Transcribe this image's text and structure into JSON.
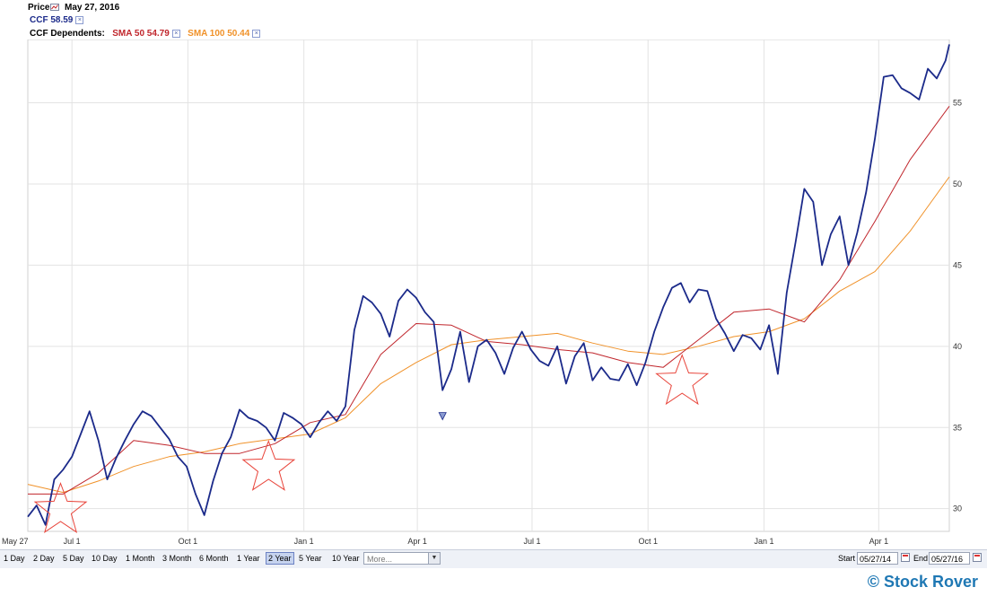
{
  "header": {
    "price_label": "Price",
    "date": "May 27, 2016",
    "ticker_label": "CCF 58.59",
    "dependents_label": "CCF Dependents:",
    "sma50_label": "SMA 50 54.79",
    "sma100_label": "SMA 100 50.44",
    "close_glyph": "×"
  },
  "colors": {
    "price": "#1b2a8a",
    "sma50": "#c0262c",
    "sma100": "#f0922a",
    "star": "#e8443a",
    "grid": "#e3e3e3"
  },
  "chart_data": {
    "type": "line",
    "x_axis": {
      "start": "2014-05-27",
      "end": "2016-05-27",
      "tick_labels": [
        "May 27",
        "Jul 1",
        "Oct 1",
        "Jan 1",
        "Apr 1",
        "Jul 1",
        "Oct 1",
        "Jan 1",
        "Apr 1"
      ],
      "tick_dates": [
        "2014-05-27",
        "2014-07-01",
        "2014-10-01",
        "2015-01-01",
        "2015-04-01",
        "2015-07-01",
        "2015-10-01",
        "2016-01-01",
        "2016-04-01"
      ]
    },
    "y_axis": {
      "ticks": [
        30,
        35,
        40,
        45,
        50,
        55
      ],
      "ylim": [
        28.6,
        58.9
      ],
      "position": "right"
    },
    "grid": true,
    "series": [
      {
        "name": "CCF",
        "x": [
          "2014-05-27",
          "2014-06-03",
          "2014-06-10",
          "2014-06-17",
          "2014-06-24",
          "2014-07-01",
          "2014-07-08",
          "2014-07-15",
          "2014-07-22",
          "2014-07-29",
          "2014-08-05",
          "2014-08-12",
          "2014-08-19",
          "2014-08-26",
          "2014-09-02",
          "2014-09-09",
          "2014-09-16",
          "2014-09-23",
          "2014-09-30",
          "2014-10-07",
          "2014-10-14",
          "2014-10-21",
          "2014-10-28",
          "2014-11-04",
          "2014-11-11",
          "2014-11-18",
          "2014-11-25",
          "2014-12-02",
          "2014-12-09",
          "2014-12-16",
          "2014-12-23",
          "2014-12-30",
          "2015-01-06",
          "2015-01-13",
          "2015-01-20",
          "2015-01-27",
          "2015-02-03",
          "2015-02-10",
          "2015-02-17",
          "2015-02-24",
          "2015-03-03",
          "2015-03-10",
          "2015-03-17",
          "2015-03-24",
          "2015-03-31",
          "2015-04-07",
          "2015-04-14",
          "2015-04-21",
          "2015-04-28",
          "2015-05-05",
          "2015-05-12",
          "2015-05-19",
          "2015-05-26",
          "2015-06-02",
          "2015-06-09",
          "2015-06-16",
          "2015-06-23",
          "2015-06-30",
          "2015-07-07",
          "2015-07-14",
          "2015-07-21",
          "2015-07-28",
          "2015-08-04",
          "2015-08-11",
          "2015-08-18",
          "2015-08-25",
          "2015-09-01",
          "2015-09-08",
          "2015-09-15",
          "2015-09-22",
          "2015-09-29",
          "2015-10-06",
          "2015-10-13",
          "2015-10-20",
          "2015-10-27",
          "2015-11-03",
          "2015-11-10",
          "2015-11-17",
          "2015-11-24",
          "2015-12-01",
          "2015-12-08",
          "2015-12-15",
          "2015-12-22",
          "2015-12-29",
          "2016-01-05",
          "2016-01-12",
          "2016-01-19",
          "2016-01-26",
          "2016-02-02",
          "2016-02-09",
          "2016-02-16",
          "2016-02-23",
          "2016-03-01",
          "2016-03-08",
          "2016-03-15",
          "2016-03-22",
          "2016-03-29",
          "2016-04-05",
          "2016-04-12",
          "2016-04-19",
          "2016-04-26",
          "2016-05-03",
          "2016-05-10",
          "2016-05-17",
          "2016-05-24",
          "2016-05-27"
        ],
        "values": [
          29.5,
          30.2,
          29.0,
          31.8,
          32.4,
          33.2,
          34.6,
          36.0,
          34.2,
          31.8,
          33.1,
          34.2,
          35.2,
          36.0,
          35.7,
          35.0,
          34.3,
          33.2,
          32.6,
          30.9,
          29.6,
          31.7,
          33.4,
          34.4,
          36.1,
          35.6,
          35.4,
          35.0,
          34.2,
          35.9,
          35.6,
          35.2,
          34.4,
          35.3,
          36.0,
          35.4,
          36.3,
          41.0,
          43.1,
          42.7,
          42.0,
          40.6,
          42.8,
          43.5,
          43.0,
          42.1,
          41.5,
          37.3,
          38.6,
          40.9,
          37.8,
          40.0,
          40.4,
          39.6,
          38.3,
          39.9,
          40.9,
          39.8,
          39.1,
          38.8,
          40.0,
          37.7,
          39.4,
          40.2,
          37.9,
          38.7,
          38.0,
          37.9,
          38.9,
          37.6,
          39.0,
          40.9,
          42.4,
          43.6,
          43.9,
          42.7,
          43.5,
          43.4,
          41.7,
          40.8,
          39.7,
          40.7,
          40.5,
          39.8,
          41.3,
          38.3,
          43.3,
          46.4,
          49.7,
          48.9,
          45.0,
          46.9,
          48.0,
          45.0,
          47.0,
          49.5,
          52.8,
          56.6,
          56.7,
          55.9,
          55.6,
          55.2,
          57.1,
          56.5,
          57.6,
          58.6
        ]
      },
      {
        "name": "SMA 50",
        "x": [
          "2014-05-27",
          "2014-06-24",
          "2014-07-22",
          "2014-08-19",
          "2014-09-16",
          "2014-10-14",
          "2014-11-11",
          "2014-12-09",
          "2015-01-06",
          "2015-02-03",
          "2015-03-03",
          "2015-03-31",
          "2015-04-28",
          "2015-05-26",
          "2015-06-23",
          "2015-07-21",
          "2015-08-18",
          "2015-09-15",
          "2015-10-13",
          "2015-11-10",
          "2015-12-08",
          "2016-01-05",
          "2016-02-02",
          "2016-03-01",
          "2016-03-29",
          "2016-04-26",
          "2016-05-27"
        ],
        "values": [
          30.9,
          30.9,
          32.2,
          34.2,
          33.9,
          33.4,
          33.4,
          34.0,
          35.3,
          35.8,
          39.5,
          41.4,
          41.3,
          40.3,
          40.1,
          39.8,
          39.6,
          39.0,
          38.7,
          40.4,
          42.1,
          42.3,
          41.5,
          44.1,
          47.7,
          51.5,
          54.79
        ]
      },
      {
        "name": "SMA 100",
        "x": [
          "2014-05-27",
          "2014-06-24",
          "2014-07-22",
          "2014-08-19",
          "2014-09-16",
          "2014-10-14",
          "2014-11-11",
          "2014-12-09",
          "2015-01-06",
          "2015-02-03",
          "2015-03-03",
          "2015-03-31",
          "2015-04-28",
          "2015-05-26",
          "2015-06-23",
          "2015-07-21",
          "2015-08-18",
          "2015-09-15",
          "2015-10-13",
          "2015-11-10",
          "2015-12-08",
          "2016-01-05",
          "2016-02-02",
          "2016-03-01",
          "2016-03-29",
          "2016-04-26",
          "2016-05-27"
        ],
        "values": [
          31.5,
          31.0,
          31.7,
          32.6,
          33.2,
          33.5,
          34.0,
          34.3,
          34.6,
          35.6,
          37.7,
          39.0,
          40.1,
          40.4,
          40.6,
          40.8,
          40.2,
          39.7,
          39.5,
          40.0,
          40.6,
          40.9,
          41.7,
          43.4,
          44.6,
          47.1,
          50.44
        ]
      }
    ],
    "annotations": [
      {
        "type": "star",
        "date": "2014-06-22",
        "value": 29.9
      },
      {
        "type": "star",
        "date": "2014-12-04",
        "value": 32.5
      },
      {
        "type": "star",
        "date": "2015-10-28",
        "value": 37.8
      },
      {
        "type": "down-arrow",
        "date": "2015-04-21",
        "value": 35.7
      }
    ]
  },
  "toolbar": {
    "ranges": [
      "1 Day",
      "2 Day",
      "5 Day",
      "10 Day",
      "1 Month",
      "3 Month",
      "6 Month",
      "1 Year",
      "2 Year",
      "5 Year",
      "10 Year"
    ],
    "active_range": "2 Year",
    "more_placeholder": "More...",
    "start_label": "Start",
    "start_value": "05/27/14",
    "end_label": "End",
    "end_value": "05/27/16"
  },
  "brand": "© Stock Rover"
}
